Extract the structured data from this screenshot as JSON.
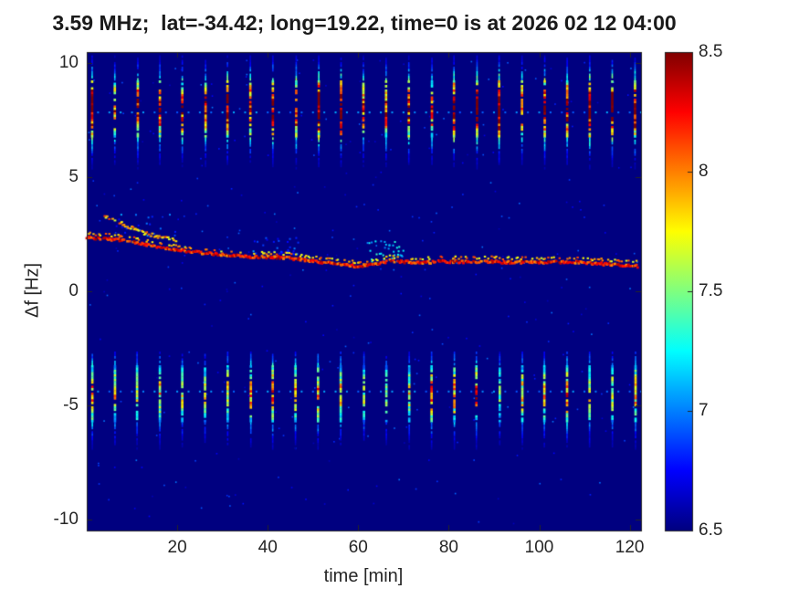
{
  "figure": {
    "title": "3.59 MHz;  lat=-34.42; long=19.22, time=0 is at 2026 02 12 04:00"
  },
  "axes": {
    "xlabel": "time [min]",
    "ylabel": "Δf [Hz]",
    "xticks": [
      20,
      40,
      60,
      80,
      100,
      120
    ],
    "yticks": [
      10,
      5,
      0,
      -5,
      -10
    ],
    "tick_color": "#262626",
    "axis_color": "#262626"
  },
  "colorbar": {
    "ticks": [
      6.5,
      7,
      7.5,
      8,
      8.5
    ],
    "colormap": "jet"
  },
  "chart_data": {
    "type": "heatmap",
    "title": "3.59 MHz;  lat=-34.42; long=19.22, time=0 is at 2026 02 12 04:00",
    "xlabel": "time [min]",
    "ylabel": "Δf [Hz]",
    "xlim": [
      0,
      122.5
    ],
    "ylim": [
      -10.5,
      10.5
    ],
    "clim": [
      6.5,
      8.5
    ],
    "colormap": "jet",
    "background_value": 6.5,
    "features": {
      "top_stripe_band": {
        "description": "periodic bright vertical stripes (pulses) every 5 min, red/orange core",
        "y_center": 8.0,
        "sigma": 1.0,
        "y_extent": [
          5.3,
          10.3
        ],
        "period_min": 5,
        "first_time_min": 1.2,
        "peak_value": 8.45
      },
      "bottom_stripe_band": {
        "description": "periodic green/cyan vertical stripes every 5 min",
        "y_center": -4.5,
        "sigma": 1.0,
        "y_extent": [
          -6.9,
          -2.7
        ],
        "period_min": 5,
        "first_time_min": 1.2,
        "peak_value": 7.75
      },
      "dot_rows": [
        {
          "y": 7.85,
          "spacing_min": 2.5,
          "first_time_min": 2.5,
          "value": 7.0
        },
        {
          "y": -4.4,
          "spacing_min": 2.5,
          "first_time_min": 2.5,
          "value": 7.0
        }
      ],
      "drift_trace": {
        "description": "Doppler trace drifting from ~2.3 Hz down to ~1.1 Hz over 2 hours",
        "value": 8.2,
        "thickness": 2.6,
        "jitter": 0.12,
        "gap": 0.1,
        "double_prob": 0.35,
        "points": [
          [
            0,
            2.35
          ],
          [
            4,
            2.3
          ],
          [
            8,
            2.22
          ],
          [
            12,
            2.1
          ],
          [
            16,
            1.95
          ],
          [
            20,
            1.82
          ],
          [
            24,
            1.72
          ],
          [
            28,
            1.63
          ],
          [
            32,
            1.58
          ],
          [
            36,
            1.52
          ],
          [
            40,
            1.5
          ],
          [
            44,
            1.47
          ],
          [
            48,
            1.38
          ],
          [
            52,
            1.28
          ],
          [
            56,
            1.18
          ],
          [
            60,
            1.1
          ],
          [
            64,
            1.2
          ],
          [
            67,
            1.35
          ],
          [
            70,
            1.3
          ],
          [
            74,
            1.26
          ],
          [
            78,
            1.3
          ],
          [
            82,
            1.3
          ],
          [
            86,
            1.26
          ],
          [
            90,
            1.3
          ],
          [
            94,
            1.26
          ],
          [
            98,
            1.3
          ],
          [
            102,
            1.26
          ],
          [
            106,
            1.3
          ],
          [
            110,
            1.26
          ],
          [
            114,
            1.2
          ],
          [
            118,
            1.15
          ],
          [
            122,
            1.1
          ]
        ]
      },
      "secondary_trace": {
        "description": "fainter second trace above main trace near start",
        "value": 7.9,
        "thickness": 2,
        "jitter": 0.15,
        "gap": 0.35,
        "double_prob": 0,
        "points": [
          [
            4,
            3.3
          ],
          [
            8,
            2.95
          ],
          [
            12,
            2.6
          ],
          [
            16,
            2.4
          ],
          [
            20,
            2.25
          ]
        ]
      },
      "clusters": [
        {
          "t": [
            36,
            48
          ],
          "f": [
            1.6,
            2.4
          ],
          "value": 6.9,
          "count": 30
        },
        {
          "t": [
            62,
            70
          ],
          "f": [
            1.3,
            2.2
          ],
          "value": 7.2,
          "count": 35
        },
        {
          "t": [
            5,
            20
          ],
          "f": [
            2.4,
            3.4
          ],
          "value": 6.9,
          "count": 20
        }
      ],
      "noise_speckle": {
        "count": 350,
        "value_range": [
          6.6,
          7.0
        ]
      }
    }
  }
}
